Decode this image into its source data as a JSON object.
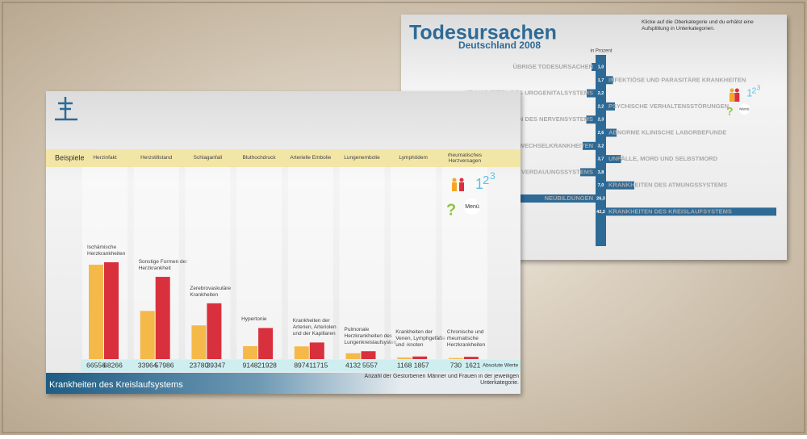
{
  "chart_data": [
    {
      "type": "bar",
      "header_label": "Beispiele",
      "examples": [
        "Herzinfakt",
        "Herzstillstand",
        "Schlaganfall",
        "Bluthochdruck",
        "Arterielle Embolie",
        "Lungenembolie",
        "Lymphödem",
        "rheumatisches Herzversagen"
      ],
      "categories": [
        "Ischämische Herzkrankheiten",
        "Sonstige Formen der Herzkrankheit",
        "Zerebrovaskuläre Krankheiten",
        "Hypertonie",
        "Krankheiten der Arterien, Arteriolen und der Kapillaren",
        "Pulmonale Herzkrankheiten des Lungenkreislaufsystems",
        "Krankheiten der Venen, Lymphgefäße und -knoten",
        "Chronische und rheumatische Herzkrankheiten"
      ],
      "series": [
        {
          "color": "#f5b94a",
          "values": [
            66556,
            33964,
            23780,
            9148,
            8974,
            4132,
            1168,
            730
          ]
        },
        {
          "color": "#d9303e",
          "values": [
            68266,
            57986,
            39347,
            21928,
            11715,
            5557,
            1857,
            1621
          ]
        }
      ],
      "value_caption": "Absolute Werte",
      "footer_title": "Krankheiten des Kreislaufsystems",
      "footer_note": "Anzahl der Gestorbenen Männer und Frauen in der jeweiligen Unterkategorie.",
      "help_icon": "?",
      "number_icon": [
        "1",
        "2",
        "3"
      ],
      "menu": "Menü"
    },
    {
      "type": "diverging-bar",
      "title": "Todesursachen",
      "subtitle": "Deutschland 2008",
      "note": "Klicke auf die Oberkategorie und du erhälst eine Aufsplittung in Unterkategorien.",
      "axis_label": "in Prozent",
      "categories": [
        "ÜBRIGE TODESURSACHEN",
        "INFEKTIÖSE UND PARASITÄRE KRANKHEITEN",
        "KRANKHEITEN DES UROGENITALSYSTEMS",
        "PSYCHISCHE VERHALTENSSTÖRUNGEN",
        "KRANKHEITEN DES NERVENSYSTEMS",
        "ABNORME KLINISCHE LABORBEFUNDE",
        "STOFFWECHSELKRANKHEITEN",
        "UNFÄLLE, MORD UND SELBSTMORD",
        "KRANKHEITEN DES VERDAUUNGSSYSTEMS",
        "KRANKHEITEN DES ATMUNGSSYSTEMS",
        "NEUBILDUNGEN",
        "KRANKHEITEN DES KREISLAUFSYSTEMS"
      ],
      "values": [
        1.0,
        1.7,
        2.2,
        2.2,
        2.3,
        2.6,
        3.2,
        3.7,
        3.8,
        7.0,
        26.3,
        42.2
      ],
      "value_labels": [
        "1,0",
        "1,7",
        "2,2",
        "2,2",
        "2,3",
        "2,6",
        "3,2",
        "3,7",
        "3,8",
        "7,0",
        "26,3",
        "42,2"
      ],
      "sides": [
        "left",
        "right",
        "left",
        "right",
        "left",
        "right",
        "left",
        "right",
        "left",
        "right",
        "left",
        "right"
      ],
      "color": "#2e6a96",
      "help_icon": "?",
      "number_icon": [
        "1",
        "2",
        "3"
      ],
      "menu": "Menü"
    }
  ]
}
